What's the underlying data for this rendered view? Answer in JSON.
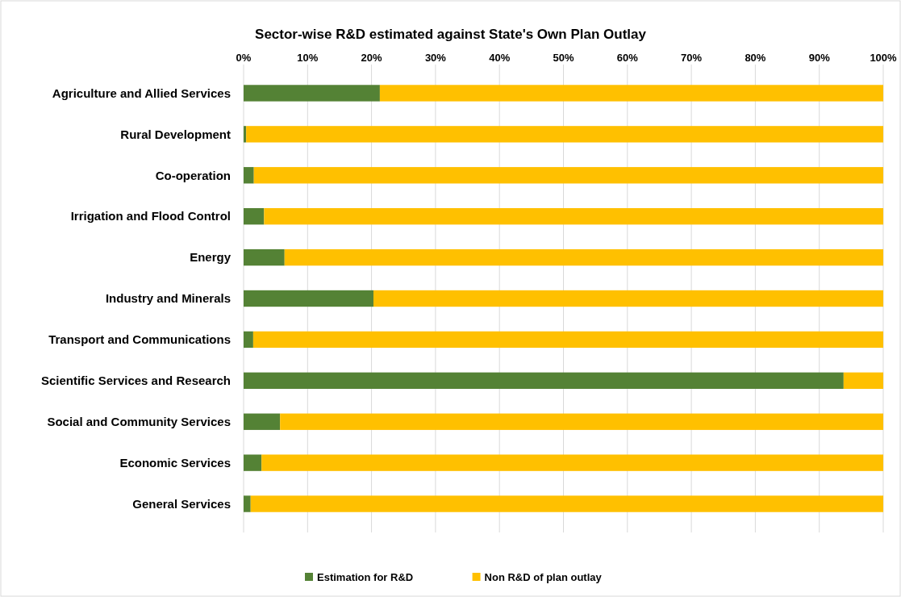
{
  "chart_data": {
    "type": "bar",
    "orientation": "horizontal",
    "stacked": true,
    "title": "Sector-wise R&D estimated against State's Own Plan Outlay",
    "categories": [
      "Agriculture and Allied Services",
      "Rural Development",
      "Co-operation",
      "Irrigation and Flood Control",
      "Energy",
      "Industry and Minerals",
      "Transport and Communications",
      "Scientific Services and Research",
      "Social and Community Services",
      "Economic Services",
      "General Services"
    ],
    "series": [
      {
        "name": "Estimation for R&D",
        "color": "#548235",
        "values": [
          21.3,
          0.4,
          1.6,
          3.2,
          6.4,
          20.3,
          1.5,
          93.8,
          5.7,
          2.8,
          1.1
        ]
      },
      {
        "name": "Non R&D of plan outlay",
        "color": "#ffc000",
        "values": [
          78.7,
          99.6,
          98.4,
          96.8,
          93.6,
          79.7,
          98.5,
          6.2,
          94.3,
          97.2,
          98.9
        ]
      }
    ],
    "xlim": [
      0,
      100
    ],
    "xticks": [
      {
        "value": 0,
        "label": "0%"
      },
      {
        "value": 10,
        "label": "10%"
      },
      {
        "value": 20,
        "label": "20%"
      },
      {
        "value": 30,
        "label": "30%"
      },
      {
        "value": 40,
        "label": "40%"
      },
      {
        "value": 50,
        "label": "50%"
      },
      {
        "value": 60,
        "label": "60%"
      },
      {
        "value": 70,
        "label": "70%"
      },
      {
        "value": 80,
        "label": "80%"
      },
      {
        "value": 90,
        "label": "90%"
      },
      {
        "value": 100,
        "label": "100%"
      }
    ],
    "grid": "x",
    "legend": "bottom"
  }
}
